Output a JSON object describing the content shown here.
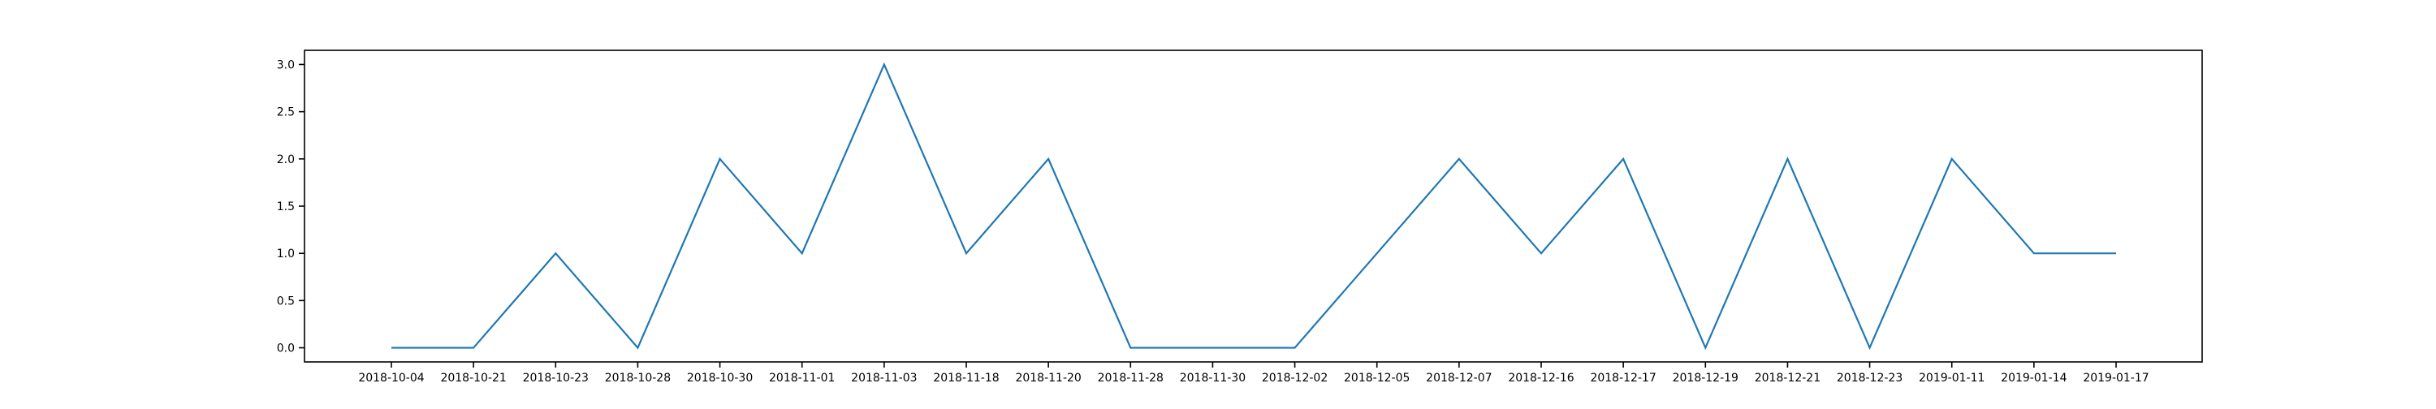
{
  "chart_data": {
    "type": "line",
    "title": "",
    "xlabel": "",
    "ylabel": "",
    "categories": [
      "2018-10-04",
      "2018-10-21",
      "2018-10-23",
      "2018-10-28",
      "2018-10-30",
      "2018-11-01",
      "2018-11-03",
      "2018-11-18",
      "2018-11-20",
      "2018-11-28",
      "2018-11-30",
      "2018-12-02",
      "2018-12-05",
      "2018-12-07",
      "2018-12-16",
      "2018-12-17",
      "2018-12-19",
      "2018-12-21",
      "2018-12-23",
      "2019-01-11",
      "2019-01-14",
      "2019-01-17"
    ],
    "series": [
      {
        "values": [
          0,
          0,
          1,
          0,
          2,
          1,
          3,
          1,
          2,
          0,
          0,
          0,
          1,
          2,
          1,
          2,
          0,
          2,
          0,
          2,
          1,
          1
        ],
        "color": "#1f77b4"
      }
    ],
    "yticks": [
      "0.0",
      "0.5",
      "1.0",
      "1.5",
      "2.0",
      "2.5",
      "3.0"
    ],
    "ylim": [
      -0.15,
      3.15
    ],
    "grid": false,
    "legend": "none"
  }
}
